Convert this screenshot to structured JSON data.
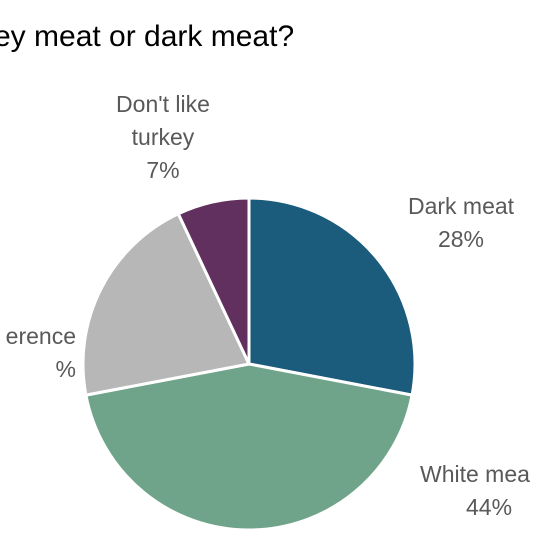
{
  "chart_data": {
    "type": "pie",
    "title": "ey meat or dark meat?",
    "slices": [
      {
        "label": "Dark meat",
        "value": 28,
        "value_label": "28%",
        "color": "#1b5b7b"
      },
      {
        "label": "White mea",
        "value": 44,
        "value_label": "44%",
        "color": "#70a48a"
      },
      {
        "label": "erence",
        "value": 21,
        "value_label": "%",
        "color": "#b7b7b7"
      },
      {
        "label": "Don't like turkey",
        "value": 7,
        "value_label": "7%",
        "color": "#62305f"
      }
    ],
    "start_angle_deg": 0,
    "direction": "clockwise",
    "label_color": "#595959"
  }
}
